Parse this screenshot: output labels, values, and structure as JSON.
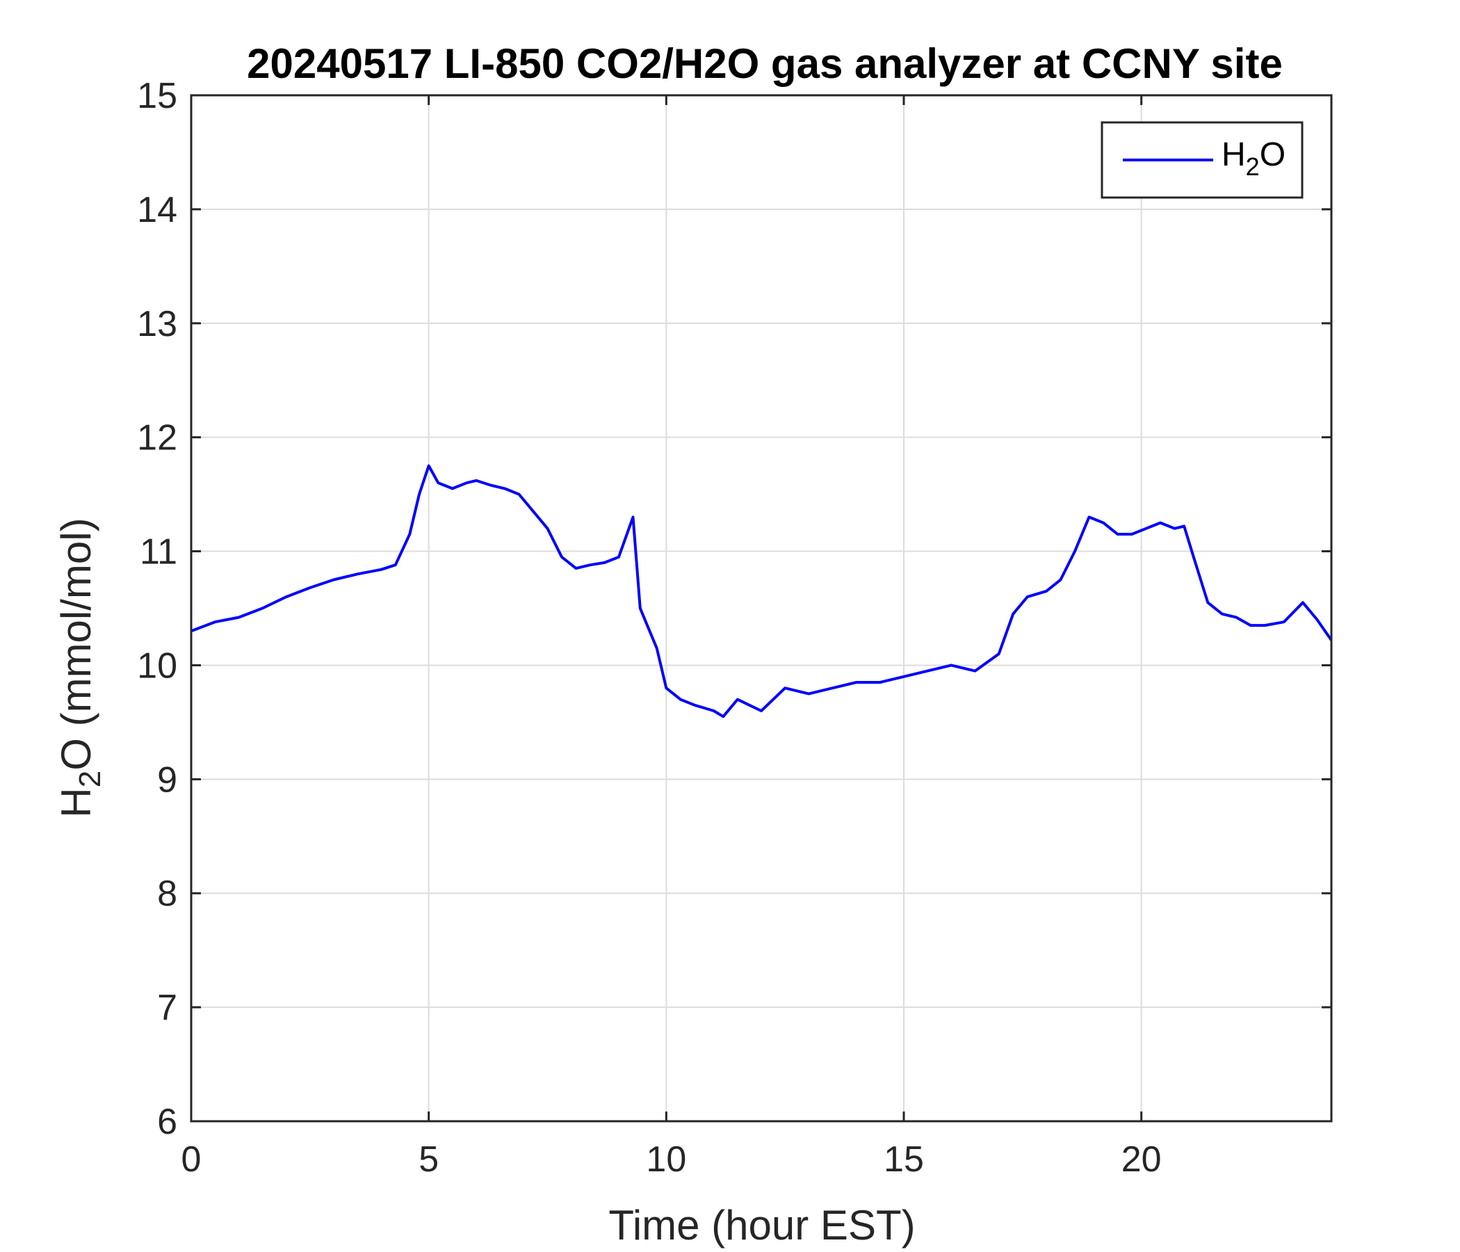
{
  "chart_data": {
    "type": "line",
    "title": "20240517 LI-850 CO2/H2O gas analyzer at CCNY site",
    "xlabel": "Time (hour EST)",
    "ylabel": {
      "pre": "H",
      "sub": "2",
      "post": "O (mmol/mol)"
    },
    "xlim": [
      0,
      24
    ],
    "ylim": [
      6,
      15
    ],
    "xticks": [
      "0",
      "5",
      "10",
      "15",
      "20"
    ],
    "yticks": [
      "6",
      "7",
      "8",
      "9",
      "10",
      "11",
      "12",
      "13",
      "14",
      "15"
    ],
    "grid": true,
    "legend_position": "top-right",
    "series": [
      {
        "name": {
          "pre": "H",
          "sub": "2",
          "post": "O"
        },
        "color": "#0000ff",
        "x": [
          0,
          0.5,
          1,
          1.5,
          2,
          2.5,
          3,
          3.5,
          4,
          4.3,
          4.6,
          4.8,
          5.0,
          5.2,
          5.5,
          5.8,
          6.0,
          6.3,
          6.6,
          6.9,
          7.2,
          7.5,
          7.8,
          8.1,
          8.4,
          8.7,
          9.0,
          9.3,
          9.45,
          9.6,
          9.8,
          10.0,
          10.3,
          10.6,
          11.0,
          11.2,
          11.5,
          12.0,
          12.5,
          13.0,
          13.5,
          14.0,
          14.5,
          15.0,
          15.5,
          16.0,
          16.5,
          17.0,
          17.3,
          17.6,
          18.0,
          18.3,
          18.6,
          18.9,
          19.2,
          19.5,
          19.8,
          20.1,
          20.4,
          20.7,
          20.9,
          21.1,
          21.4,
          21.7,
          22.0,
          22.3,
          22.6,
          23.0,
          23.4,
          23.7,
          24.0
        ],
        "y": [
          10.3,
          10.38,
          10.42,
          10.5,
          10.6,
          10.68,
          10.75,
          10.8,
          10.84,
          10.88,
          11.15,
          11.5,
          11.75,
          11.6,
          11.55,
          11.6,
          11.62,
          11.58,
          11.55,
          11.5,
          11.35,
          11.2,
          10.95,
          10.85,
          10.88,
          10.9,
          10.95,
          11.3,
          10.5,
          10.35,
          10.15,
          9.8,
          9.7,
          9.65,
          9.6,
          9.55,
          9.7,
          9.6,
          9.8,
          9.75,
          9.8,
          9.85,
          9.85,
          9.9,
          9.95,
          10.0,
          9.95,
          10.1,
          10.45,
          10.6,
          10.65,
          10.75,
          11.0,
          11.3,
          11.25,
          11.15,
          11.15,
          11.2,
          11.25,
          11.2,
          11.22,
          10.95,
          10.55,
          10.45,
          10.42,
          10.35,
          10.35,
          10.38,
          10.55,
          10.4,
          10.22
        ]
      }
    ]
  }
}
